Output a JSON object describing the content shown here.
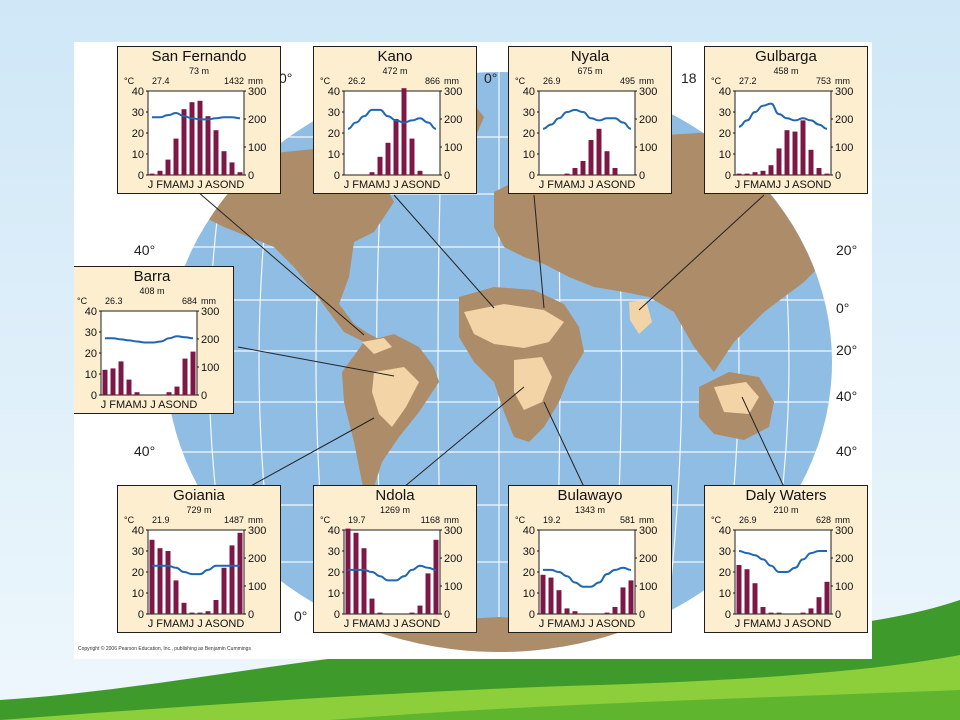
{
  "colors": {
    "ocean": "#8fbde4",
    "land": "#ad8c69",
    "savanna": "#f2d4a6",
    "panel": "#fdeed0",
    "bar": "#7c1746",
    "temp_line": "#1f67b0",
    "grid": "#ffffff",
    "leader_line": "#222222"
  },
  "map": {
    "lat_labels": [
      {
        "text": "40°"
      },
      {
        "text": "40°"
      },
      {
        "text": "20°"
      },
      {
        "text": "0°"
      },
      {
        "text": "20°"
      },
      {
        "text": "40°"
      },
      {
        "text": "40°"
      }
    ],
    "lon_labels": [
      {
        "text": "0°"
      },
      {
        "text": "0°"
      },
      {
        "text": "18"
      },
      {
        "text": "0°"
      }
    ],
    "copyright": "Copyright © 2006 Pearson Education, Inc., publishing as Benjamin Cummings"
  },
  "axis": {
    "month_labels": "J FMAMJ J ASOND",
    "month_labels_alt": "JFMAMJ JASOND",
    "temp_unit": "°C",
    "precip_unit": "mm",
    "temp_ticks": [
      "40",
      "30",
      "20",
      "10",
      "0"
    ],
    "precip_ticks": [
      "300",
      "200",
      "100",
      "0"
    ]
  },
  "chart_data": [
    {
      "type": "bar",
      "title": "San Fernando",
      "elevation": "73 m",
      "mean_temp": "27.4",
      "annual_precip": "1432",
      "categories": [
        "J",
        "F",
        "M",
        "A",
        "M",
        "J",
        "J",
        "A",
        "S",
        "O",
        "N",
        "D"
      ],
      "series": [
        {
          "values": [
            5,
            15,
            55,
            130,
            235,
            260,
            265,
            210,
            160,
            85,
            45,
            10
          ]
        },
        {
          "values": [
            27.5,
            27.5,
            28.5,
            29.5,
            28,
            27,
            26.5,
            26.5,
            27,
            27.5,
            27.5,
            27
          ]
        }
      ],
      "ylim_temp": [
        0,
        40
      ],
      "ylim_precip": [
        0,
        300
      ],
      "legend": "none"
    },
    {
      "type": "bar",
      "title": "Kano",
      "elevation": "472 m",
      "mean_temp": "26.2",
      "annual_precip": "866",
      "categories": [
        "J",
        "F",
        "M",
        "A",
        "M",
        "J",
        "J",
        "A",
        "S",
        "O",
        "N",
        "D"
      ],
      "series": [
        {
          "values": [
            0,
            0,
            2,
            10,
            65,
            115,
            200,
            310,
            130,
            15,
            0,
            0
          ]
        },
        {
          "values": [
            22,
            25,
            28,
            31,
            31,
            28,
            26,
            25,
            26,
            27,
            25,
            22
          ]
        }
      ],
      "ylim_temp": [
        0,
        40
      ],
      "ylim_precip": [
        0,
        300
      ],
      "legend": "none"
    },
    {
      "type": "bar",
      "title": "Nyala",
      "elevation": "675 m",
      "mean_temp": "26.9",
      "annual_precip": "495",
      "categories": [
        "J",
        "F",
        "M",
        "A",
        "M",
        "J",
        "J",
        "A",
        "S",
        "O",
        "N",
        "D"
      ],
      "series": [
        {
          "values": [
            0,
            0,
            0,
            5,
            25,
            50,
            125,
            165,
            85,
            25,
            0,
            0
          ]
        },
        {
          "values": [
            22,
            24,
            27,
            30,
            31,
            30,
            27,
            26,
            27,
            27,
            25,
            22
          ]
        }
      ],
      "ylim_temp": [
        0,
        40
      ],
      "ylim_precip": [
        0,
        300
      ],
      "legend": "none"
    },
    {
      "type": "bar",
      "title": "Gulbarga",
      "elevation": "458 m",
      "mean_temp": "27.2",
      "annual_precip": "753",
      "categories": [
        "J",
        "F",
        "M",
        "A",
        "M",
        "J",
        "J",
        "A",
        "S",
        "O",
        "N",
        "D"
      ],
      "series": [
        {
          "values": [
            5,
            5,
            10,
            15,
            35,
            95,
            160,
            155,
            195,
            90,
            25,
            5
          ]
        },
        {
          "values": [
            23,
            26,
            30,
            33,
            34,
            29,
            27,
            26,
            27,
            26,
            24,
            22
          ]
        }
      ],
      "ylim_temp": [
        0,
        40
      ],
      "ylim_precip": [
        0,
        300
      ],
      "legend": "none"
    },
    {
      "type": "bar",
      "title": "Barra",
      "elevation": "408 m",
      "mean_temp": "26.3",
      "annual_precip": "684",
      "categories": [
        "J",
        "F",
        "M",
        "A",
        "M",
        "J",
        "J",
        "A",
        "S",
        "O",
        "N",
        "D"
      ],
      "series": [
        {
          "values": [
            90,
            95,
            120,
            55,
            10,
            0,
            0,
            0,
            10,
            30,
            130,
            155
          ]
        },
        {
          "values": [
            27,
            27,
            26.5,
            26,
            25.5,
            25,
            25,
            25.5,
            27,
            28,
            27.5,
            27
          ]
        }
      ],
      "ylim_temp": [
        0,
        40
      ],
      "ylim_precip": [
        0,
        300
      ],
      "legend": "none"
    },
    {
      "type": "bar",
      "title": "Goiania",
      "elevation": "729 m",
      "mean_temp": "21.9",
      "annual_precip": "1487",
      "categories": [
        "J",
        "F",
        "M",
        "A",
        "M",
        "J",
        "J",
        "A",
        "S",
        "O",
        "N",
        "D"
      ],
      "series": [
        {
          "values": [
            265,
            235,
            225,
            120,
            40,
            5,
            5,
            10,
            50,
            165,
            245,
            290
          ]
        },
        {
          "values": [
            23,
            23,
            23,
            22,
            20,
            19,
            19,
            21,
            23,
            23,
            23,
            23
          ]
        }
      ],
      "ylim_temp": [
        0,
        40
      ],
      "ylim_precip": [
        0,
        300
      ],
      "legend": "none"
    },
    {
      "type": "bar",
      "title": "Ndola",
      "elevation": "1269 m",
      "mean_temp": "19.7",
      "annual_precip": "1168",
      "categories": [
        "J",
        "F",
        "M",
        "A",
        "M",
        "J",
        "J",
        "A",
        "S",
        "O",
        "N",
        "D"
      ],
      "series": [
        {
          "values": [
            305,
            290,
            235,
            55,
            5,
            0,
            0,
            0,
            5,
            30,
            145,
            265
          ]
        },
        {
          "values": [
            21,
            21,
            21,
            20,
            18,
            16,
            16,
            18,
            21,
            23,
            22,
            21
          ]
        }
      ],
      "ylim_temp": [
        0,
        40
      ],
      "ylim_precip": [
        0,
        300
      ],
      "legend": "none"
    },
    {
      "type": "bar",
      "title": "Bulawayo",
      "elevation": "1343 m",
      "mean_temp": "19.2",
      "annual_precip": "581",
      "categories": [
        "J",
        "F",
        "M",
        "A",
        "M",
        "J",
        "J",
        "A",
        "S",
        "O",
        "N",
        "D"
      ],
      "series": [
        {
          "values": [
            140,
            130,
            85,
            20,
            10,
            0,
            0,
            0,
            5,
            25,
            95,
            120
          ]
        },
        {
          "values": [
            21,
            21,
            20,
            18,
            15,
            13,
            13,
            15,
            19,
            21,
            22,
            21
          ]
        }
      ],
      "ylim_temp": [
        0,
        40
      ],
      "ylim_precip": [
        0,
        300
      ],
      "legend": "none"
    },
    {
      "type": "bar",
      "title": "Daly Waters",
      "elevation": "210 m",
      "mean_temp": "26.9",
      "annual_precip": "628",
      "categories": [
        "J",
        "F",
        "M",
        "A",
        "M",
        "J",
        "J",
        "A",
        "S",
        "O",
        "N",
        "D"
      ],
      "series": [
        {
          "values": [
            175,
            160,
            110,
            25,
            5,
            5,
            0,
            0,
            5,
            20,
            60,
            115
          ]
        },
        {
          "values": [
            30,
            29,
            28,
            26,
            23,
            20,
            20,
            22,
            26,
            29,
            30,
            30
          ]
        }
      ],
      "ylim_temp": [
        0,
        40
      ],
      "ylim_precip": [
        0,
        300
      ],
      "legend": "none"
    }
  ]
}
